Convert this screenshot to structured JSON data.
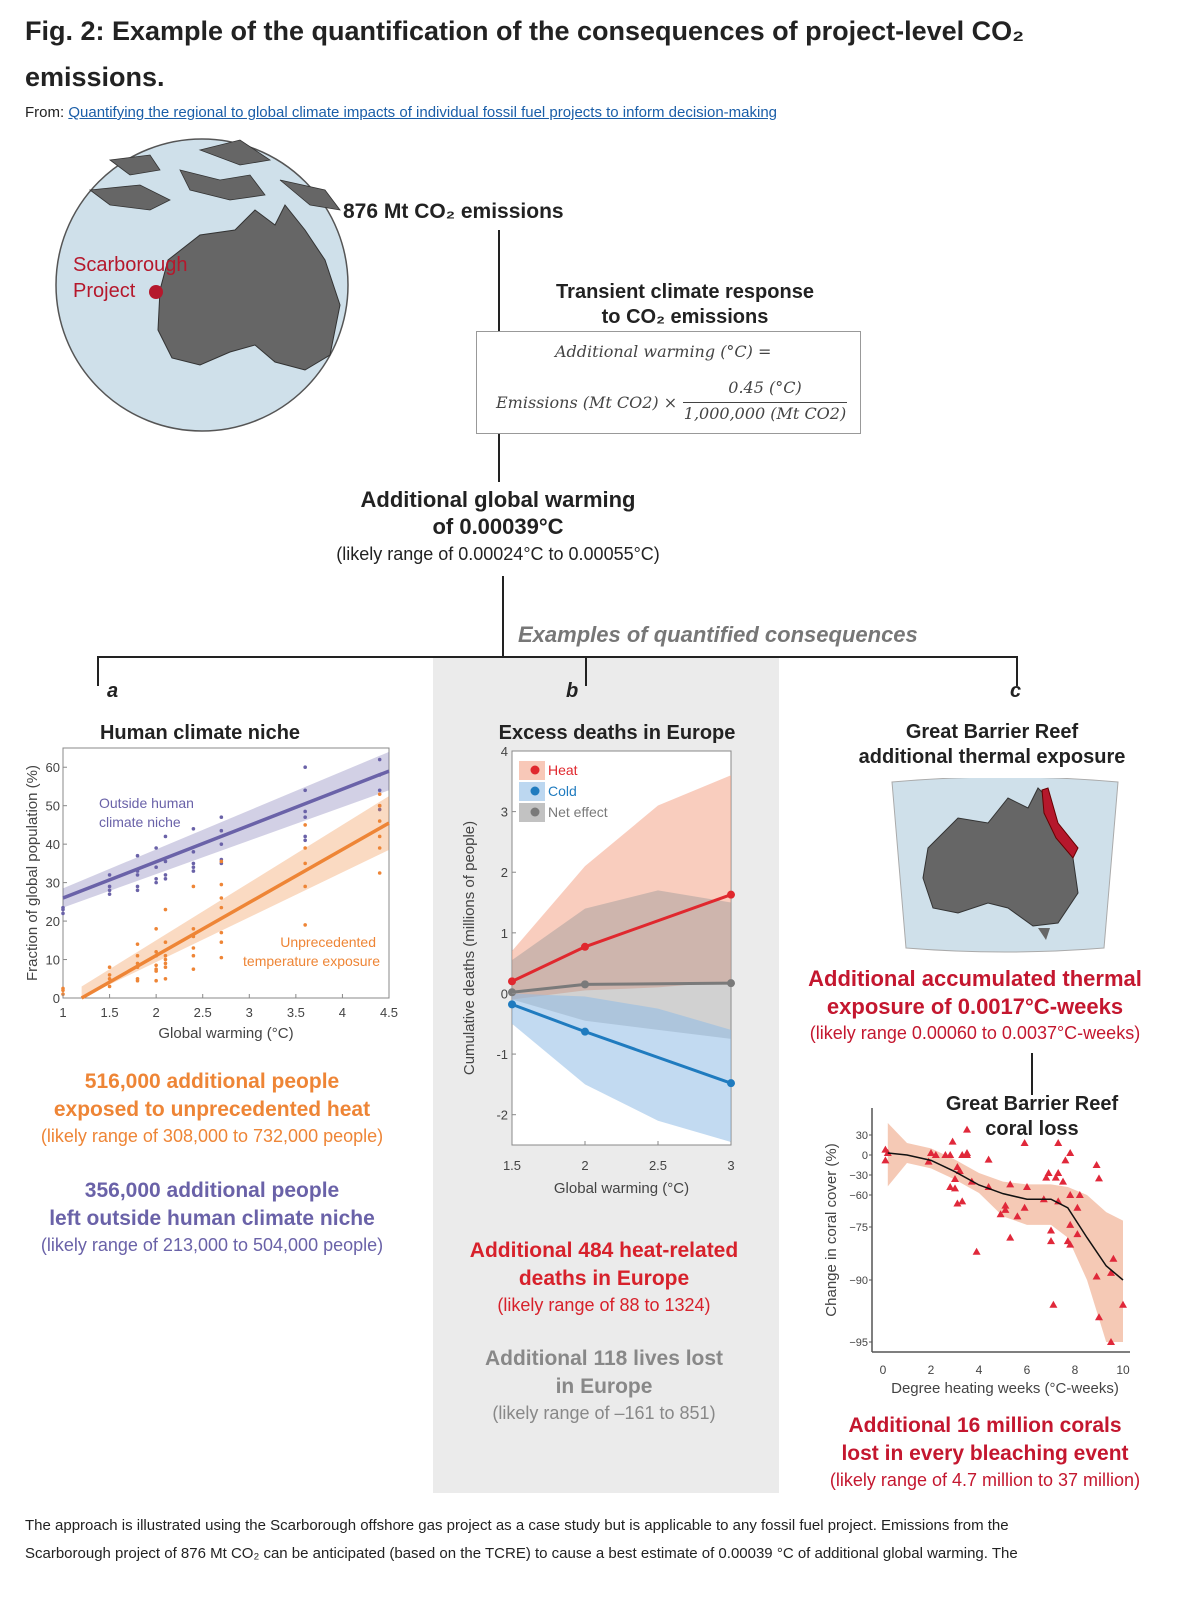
{
  "header": {
    "title": "Fig. 2: Example of the quantification of the consequences of project-level CO₂ emissions.",
    "from_label": "From:",
    "source_link": "Quantifying the regional to global climate impacts of individual fossil fuel projects to inform decision-making"
  },
  "flow": {
    "project_label": "Scarborough Project",
    "emissions": "876 Mt CO₂ emissions",
    "tcr_title_1": "Transient climate response",
    "tcr_title_2": "to CO₂ emissions",
    "formula_lhs": "Additional warming (°C) =",
    "formula_left": "Emissions (Mt CO2) ×",
    "formula_num": "0.45 (°C)",
    "formula_den": "1,000,000 (Mt CO2)",
    "warming_1": "Additional global warming",
    "warming_2": "of 0.00039°C",
    "warming_range": "(likely range of 0.00024°C to 0.00055°C)",
    "examples_title": "Examples of quantified consequences"
  },
  "panels": {
    "a": {
      "letter": "a",
      "title": "Human climate niche",
      "result1": "516,000 additional people",
      "result1b": "exposed to unprecedented heat",
      "range1": "(likely range of 308,000 to 732,000 people)",
      "result2": "356,000 additional people",
      "result2b": "left outside human climate niche",
      "range2": "(likely range of 213,000 to 504,000 people)"
    },
    "b": {
      "letter": "b",
      "title": "Excess deaths in Europe",
      "result1": "Additional 484 heat-related",
      "result1b": "deaths in Europe",
      "range1": "(likely range of 88 to 1324)",
      "result2": "Additional 118 lives lost",
      "result2b": "in Europe",
      "range2": "(likely range of –161 to 851)"
    },
    "c": {
      "letter": "c",
      "title_1": "Great Barrier Reef",
      "title_2": "additional thermal exposure",
      "result1": "Additional accumulated thermal",
      "result1b": "exposure of 0.0017°C-weeks",
      "range1": "(likely range 0.00060 to 0.0037°C-weeks)",
      "sub_title_1": "Great Barrier Reef",
      "sub_title_2": "coral loss",
      "result2": "Additional 16 million corals",
      "result2b": "lost in every bleaching event",
      "range2": "(likely range of 4.7 million to 37 million)"
    }
  },
  "caption": {
    "line1": "The approach is illustrated using the Scarborough offshore gas project as a case study but is applicable to any fossil fuel project. Emissions from the",
    "line2": "Scarborough project of 876 Mt CO₂ can be anticipated (based on the TCRE) to cause a best estimate of 0.00039 °C of additional global warming. The"
  },
  "colors": {
    "purple": "#6a62a8",
    "orange": "#ee8536",
    "heat": "#e0282e",
    "cold": "#1f7bbf",
    "net": "#7a7a7a",
    "reef": "#c4172f",
    "grey_text": "#888888"
  },
  "chart_data": [
    {
      "type": "scatter",
      "title": "Human climate niche",
      "xlabel": "Global warming (°C)",
      "ylabel": "Fraction of global population (%)",
      "xlim": [
        1,
        4.5
      ],
      "ylim": [
        0,
        65
      ],
      "xticks": [
        "1",
        "1.5",
        "2",
        "2.5",
        "3",
        "3.5",
        "4",
        "4.5"
      ],
      "yticks": [
        "0",
        "10",
        "20",
        "30",
        "40",
        "50",
        "60"
      ],
      "series": [
        {
          "name": "Outside human climate niche",
          "fit": [
            [
              1,
              26
            ],
            [
              4.5,
              59
            ]
          ],
          "points": [
            [
              1,
              22
            ],
            [
              1,
              23
            ],
            [
              1,
              23.5
            ],
            [
              1.5,
              27
            ],
            [
              1.5,
              28
            ],
            [
              1.5,
              29
            ],
            [
              1.5,
              32
            ],
            [
              1.8,
              28
            ],
            [
              1.8,
              29
            ],
            [
              1.8,
              32
            ],
            [
              1.8,
              33
            ],
            [
              1.8,
              37
            ],
            [
              2,
              30
            ],
            [
              2,
              31
            ],
            [
              2,
              34
            ],
            [
              2,
              39
            ],
            [
              2.1,
              31
            ],
            [
              2.1,
              32
            ],
            [
              2.1,
              35.5
            ],
            [
              2.1,
              42
            ],
            [
              2.4,
              33
            ],
            [
              2.4,
              34
            ],
            [
              2.4,
              35
            ],
            [
              2.4,
              38
            ],
            [
              2.4,
              44
            ],
            [
              2.7,
              35
            ],
            [
              2.7,
              36
            ],
            [
              2.7,
              40
            ],
            [
              2.7,
              43.5
            ],
            [
              2.7,
              47
            ],
            [
              3.6,
              41
            ],
            [
              3.6,
              42
            ],
            [
              3.6,
              47
            ],
            [
              3.6,
              48.5
            ],
            [
              3.6,
              54
            ],
            [
              3.6,
              60
            ],
            [
              4.4,
              49
            ],
            [
              4.4,
              50
            ],
            [
              4.4,
              54
            ],
            [
              4.4,
              58
            ],
            [
              4.4,
              62
            ]
          ]
        },
        {
          "name": "Unprecedented temperature exposure",
          "fit": [
            [
              1.2,
              0
            ],
            [
              4.5,
              45.5
            ]
          ],
          "points": [
            [
              1,
              1
            ],
            [
              1,
              2
            ],
            [
              1,
              2.5
            ],
            [
              1.5,
              3
            ],
            [
              1.5,
              5
            ],
            [
              1.5,
              6
            ],
            [
              1.5,
              8
            ],
            [
              1.8,
              4.5
            ],
            [
              1.8,
              5
            ],
            [
              1.8,
              8
            ],
            [
              1.8,
              9
            ],
            [
              1.8,
              11
            ],
            [
              1.8,
              14
            ],
            [
              2,
              4.5
            ],
            [
              2,
              7
            ],
            [
              2,
              7.5
            ],
            [
              2,
              8.5
            ],
            [
              2,
              11
            ],
            [
              2,
              12
            ],
            [
              2,
              18
            ],
            [
              2.1,
              5
            ],
            [
              2.1,
              8
            ],
            [
              2.1,
              9
            ],
            [
              2.1,
              10
            ],
            [
              2.1,
              11
            ],
            [
              2.1,
              14.5
            ],
            [
              2.1,
              23
            ],
            [
              2.4,
              7.5
            ],
            [
              2.4,
              11
            ],
            [
              2.4,
              13
            ],
            [
              2.4,
              16
            ],
            [
              2.4,
              18
            ],
            [
              2.4,
              29
            ],
            [
              2.7,
              10.5
            ],
            [
              2.7,
              14.5
            ],
            [
              2.7,
              17
            ],
            [
              2.7,
              23.5
            ],
            [
              2.7,
              26
            ],
            [
              2.7,
              29.5
            ],
            [
              2.7,
              35.5
            ],
            [
              3.6,
              19
            ],
            [
              3.6,
              29
            ],
            [
              3.6,
              35
            ],
            [
              3.6,
              39
            ],
            [
              3.6,
              45
            ],
            [
              4.4,
              32.5
            ],
            [
              4.4,
              39
            ],
            [
              4.4,
              42
            ],
            [
              4.4,
              46
            ],
            [
              4.4,
              50
            ],
            [
              4.4,
              53
            ]
          ]
        }
      ]
    },
    {
      "type": "line",
      "title": "Excess deaths in Europe",
      "xlabel": "Global warming (°C)",
      "ylabel": "Cumulative deaths (millions of people)",
      "xlim": [
        1.5,
        3
      ],
      "ylim": [
        -2.5,
        4
      ],
      "xticks": [
        "1.5",
        "2",
        "2.5",
        "3"
      ],
      "yticks": [
        "-2",
        "-1",
        "0",
        "1",
        "2",
        "3",
        "4"
      ],
      "legend": [
        "Heat",
        "Cold",
        "Net effect"
      ],
      "legend_position": "top-left",
      "x": [
        1.5,
        2,
        2.5,
        3
      ],
      "series": [
        {
          "name": "Heat",
          "values": [
            0.2,
            0.77,
            null,
            1.63
          ],
          "band_upper": [
            0.7,
            2.1,
            3.1,
            3.6
          ],
          "band_lower": [
            -0.1,
            0.05,
            0.1,
            0.2
          ]
        },
        {
          "name": "Cold",
          "values": [
            -0.18,
            -0.63,
            null,
            -1.48
          ],
          "band_upper": [
            0,
            -0.05,
            -0.25,
            -0.6
          ],
          "band_lower": [
            -0.5,
            -1.5,
            -2.1,
            -2.45
          ]
        },
        {
          "name": "Net effect",
          "values": [
            0.02,
            0.15,
            null,
            0.17
          ],
          "band_upper": [
            0.55,
            1.4,
            1.7,
            1.5
          ],
          "band_lower": [
            -0.1,
            -0.45,
            -0.6,
            -0.75
          ]
        }
      ]
    },
    {
      "type": "scatter",
      "title": "Great Barrier Reef coral loss",
      "xlabel": "Degree heating weeks (°C-weeks)",
      "ylabel": "Change in coral cover (%)",
      "xlim": [
        0,
        10
      ],
      "xticks": [
        "0",
        "2",
        "4",
        "6",
        "8",
        "10"
      ],
      "yticks": [
        "30",
        "0",
        "−30",
        "−60",
        "−75",
        "−90",
        "−95"
      ],
      "ytick_values": [
        30,
        0,
        -30,
        -60,
        -75,
        -90,
        -95
      ],
      "fit": [
        [
          0.2,
          3
        ],
        [
          1,
          0
        ],
        [
          2,
          -8
        ],
        [
          3,
          -25
        ],
        [
          4,
          -45
        ],
        [
          5,
          -58
        ],
        [
          6,
          -62
        ],
        [
          7,
          -62
        ],
        [
          7.7,
          -66
        ],
        [
          8.5,
          -78
        ],
        [
          9.3,
          -86
        ],
        [
          10,
          -90
        ]
      ],
      "points": [
        [
          0.1,
          8
        ],
        [
          0.1,
          -8
        ],
        [
          0.2,
          3
        ],
        [
          1.9,
          -10
        ],
        [
          2,
          3
        ],
        [
          2.2,
          0
        ],
        [
          2.6,
          0
        ],
        [
          2.8,
          0
        ],
        [
          2.8,
          -48
        ],
        [
          2.9,
          20
        ],
        [
          3,
          -36
        ],
        [
          3,
          -50
        ],
        [
          3.1,
          -18
        ],
        [
          3.1,
          -64
        ],
        [
          3.2,
          -24
        ],
        [
          3.3,
          0
        ],
        [
          3.3,
          -63
        ],
        [
          3.5,
          3
        ],
        [
          3.5,
          0
        ],
        [
          3.5,
          38
        ],
        [
          3.7,
          -40
        ],
        [
          3.9,
          -82
        ],
        [
          4.4,
          -7
        ],
        [
          4.4,
          -48
        ],
        [
          4.9,
          -69
        ],
        [
          5.1,
          -67
        ],
        [
          5.1,
          -65
        ],
        [
          5.3,
          -44
        ],
        [
          5.3,
          -78
        ],
        [
          5.6,
          -70
        ],
        [
          5.9,
          18
        ],
        [
          5.9,
          -66
        ],
        [
          6,
          -48
        ],
        [
          6.7,
          -62
        ],
        [
          6.8,
          -34
        ],
        [
          6.9,
          -27
        ],
        [
          7,
          -76
        ],
        [
          7,
          -79
        ],
        [
          7.1,
          -92
        ],
        [
          7.2,
          -34
        ],
        [
          7.3,
          18
        ],
        [
          7.3,
          -27
        ],
        [
          7.3,
          -63
        ],
        [
          7.5,
          -40
        ],
        [
          7.6,
          -8
        ],
        [
          7.7,
          -79
        ],
        [
          7.8,
          -60
        ],
        [
          7.8,
          -74
        ],
        [
          7.8,
          -80
        ],
        [
          7.8,
          3
        ],
        [
          8.1,
          -77
        ],
        [
          8.1,
          -66
        ],
        [
          8.2,
          -60
        ],
        [
          8.9,
          -15
        ],
        [
          8.9,
          -89
        ],
        [
          9,
          -35
        ],
        [
          9,
          -93
        ],
        [
          9.5,
          -88
        ],
        [
          9.5,
          -95
        ],
        [
          9.6,
          -84
        ],
        [
          10,
          -92
        ]
      ]
    }
  ]
}
